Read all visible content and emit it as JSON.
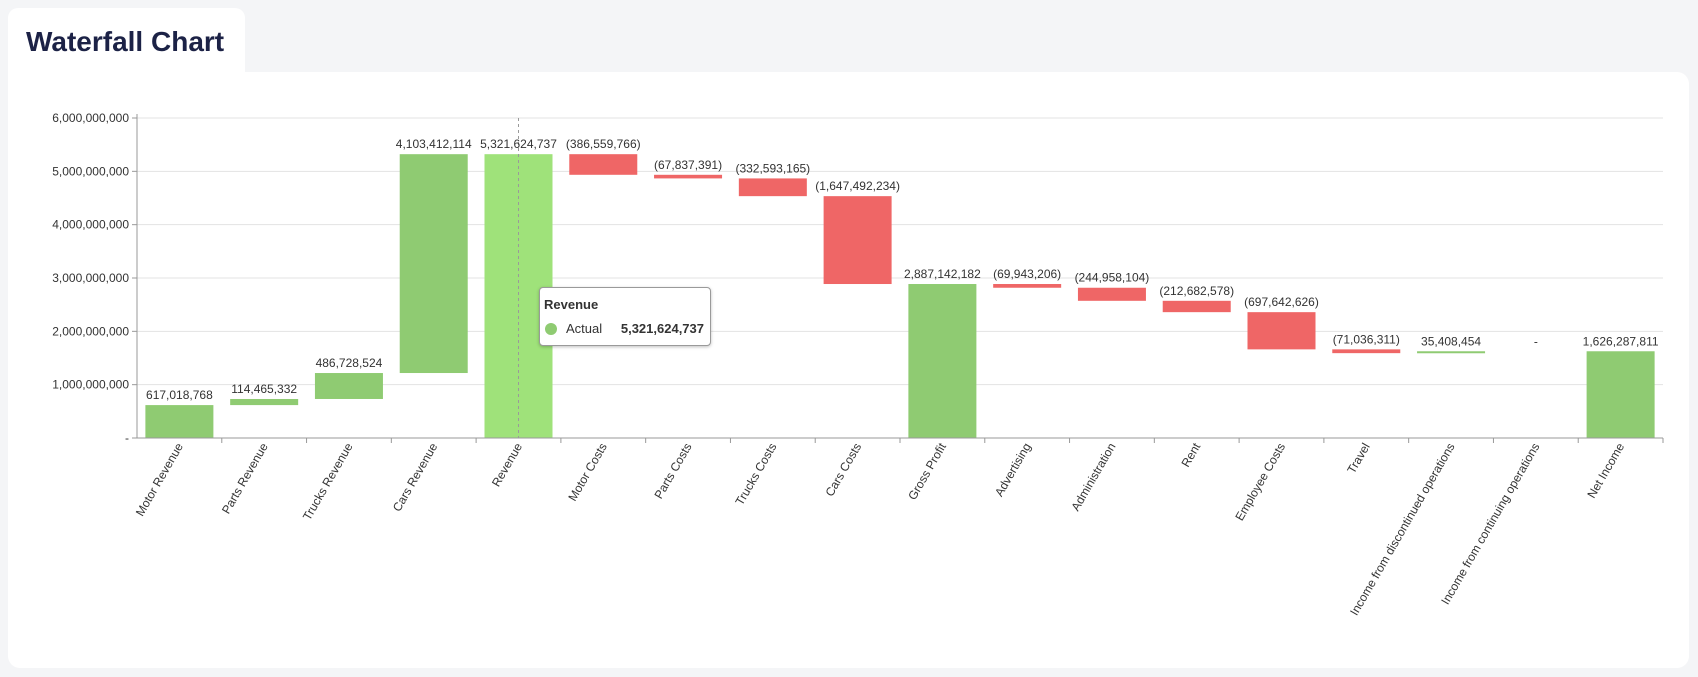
{
  "page": {
    "title": "Waterfall Chart"
  },
  "tooltip": {
    "title": "Revenue",
    "series": "Actual",
    "value": "5,321,624,737"
  },
  "colors": {
    "increase": "#8fcb72",
    "decrease": "#ef6666",
    "total": "#8fcb72",
    "highlight": "#9fe27a"
  },
  "chart_data": {
    "type": "bar",
    "subtype": "waterfall",
    "title": "Waterfall Chart",
    "ylim": [
      0,
      6000000000
    ],
    "yticks": [
      {
        "value": 0,
        "label": "-"
      },
      {
        "value": 1000000000,
        "label": "1,000,000,000"
      },
      {
        "value": 2000000000,
        "label": "2,000,000,000"
      },
      {
        "value": 3000000000,
        "label": "3,000,000,000"
      },
      {
        "value": 4000000000,
        "label": "4,000,000,000"
      },
      {
        "value": 5000000000,
        "label": "5,000,000,000"
      },
      {
        "value": 6000000000,
        "label": "6,000,000,000"
      }
    ],
    "grid": true,
    "categories": [
      "Motor Revenue",
      "Parts Revenue",
      "Trucks Revenue",
      "Cars Revenue",
      "Revenue",
      "Motor Costs",
      "Parts Costs",
      "Trucks Costs",
      "Cars Costs",
      "Gross Profit",
      "Advertising",
      "Administration",
      "Rent",
      "Employee Costs",
      "Travel",
      "Income from discontinued operations",
      "Income from continuing operations",
      "Net Income"
    ],
    "values": [
      617018768,
      114465332,
      486728524,
      4103412114,
      5321624737,
      -386559766,
      -67837391,
      -332593165,
      -1647492234,
      2887142182,
      -69943206,
      -244958104,
      -212682578,
      -697642626,
      -71036311,
      35408454,
      0,
      1626287811
    ],
    "kinds": [
      "increase",
      "increase",
      "increase",
      "increase",
      "total",
      "decrease",
      "decrease",
      "decrease",
      "decrease",
      "total",
      "decrease",
      "decrease",
      "decrease",
      "decrease",
      "decrease",
      "increase",
      "increase",
      "total"
    ],
    "data_labels": [
      "617,018,768",
      "114,465,332",
      "486,728,524",
      "4,103,412,114",
      "5,321,624,737",
      "(386,559,766)",
      "(67,837,391)",
      "(332,593,165)",
      "(1,647,492,234)",
      "2,887,142,182",
      "(69,943,206)",
      "(244,958,104)",
      "(212,682,578)",
      "(697,642,626)",
      "(71,036,311)",
      "35,408,454",
      "-",
      "1,626,287,811"
    ],
    "highlighted_category": "Revenue"
  }
}
